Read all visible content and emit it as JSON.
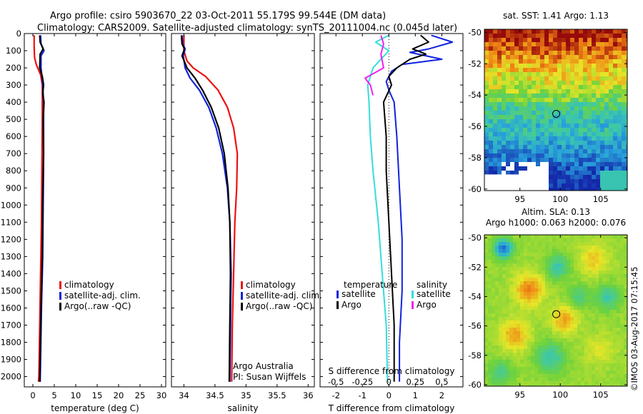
{
  "header": {
    "title_line1": "Argo profile: csiro 5903670_22 03-Oct-2011 55.179S 99.544E (DM data)",
    "title_line2": "Climatology: CARS2009. Satellite-adjusted climatology: synTS_20111004.nc (0.045d later)"
  },
  "footer": {
    "watermark": "©IMOS 03-Aug-2017 07:15:45",
    "credit_line1": "Argo Australia",
    "credit_line2": "PI: Susan Wijffels"
  },
  "colors": {
    "climatology": "#ee1111",
    "satellite": "#1122dd",
    "argo": "#000000",
    "salinity_satellite": "#33dddd",
    "salinity_argo": "#ee22ee"
  },
  "chart_data": [
    {
      "id": "temperature",
      "type": "line",
      "xlabel": "temperature (deg C)",
      "ylabel": "",
      "xlim": [
        -2,
        31
      ],
      "ylim": [
        2060,
        0
      ],
      "xticks": [
        0,
        5,
        10,
        15,
        20,
        25,
        30
      ],
      "yticks": [
        0,
        100,
        200,
        300,
        400,
        500,
        600,
        700,
        800,
        900,
        1000,
        1100,
        1200,
        1300,
        1400,
        1500,
        1600,
        1700,
        1800,
        1900,
        2000
      ],
      "legend": [
        "climatology",
        "satellite-adj. clim.",
        "Argo(..raw -QC)"
      ],
      "series": [
        {
          "name": "climatology",
          "color": "climatology",
          "points": [
            [
              0.3,
              10
            ],
            [
              0.3,
              80
            ],
            [
              0.4,
              140
            ],
            [
              0.8,
              180
            ],
            [
              1.8,
              240
            ],
            [
              2.2,
              300
            ],
            [
              2.2,
              500
            ],
            [
              2.1,
              800
            ],
            [
              2.0,
              1100
            ],
            [
              1.8,
              1400
            ],
            [
              1.6,
              1700
            ],
            [
              1.4,
              2000
            ],
            [
              1.3,
              2030
            ]
          ]
        },
        {
          "name": "satellite-adj. clim.",
          "color": "satellite",
          "points": [
            [
              1.8,
              10
            ],
            [
              1.9,
              60
            ],
            [
              2.6,
              100
            ],
            [
              1.9,
              130
            ],
            [
              1.9,
              200
            ],
            [
              2.3,
              300
            ],
            [
              2.5,
              400
            ],
            [
              2.5,
              700
            ],
            [
              2.4,
              1000
            ],
            [
              2.3,
              1300
            ],
            [
              2.0,
              1600
            ],
            [
              1.8,
              1900
            ],
            [
              1.7,
              2030
            ]
          ]
        },
        {
          "name": "Argo(..raw -QC)",
          "color": "argo",
          "points": [
            [
              1.6,
              10
            ],
            [
              1.7,
              50
            ],
            [
              2.4,
              90
            ],
            [
              1.7,
              120
            ],
            [
              1.6,
              200
            ],
            [
              2.2,
              250
            ],
            [
              2.5,
              300
            ],
            [
              2.3,
              350
            ],
            [
              2.6,
              400
            ],
            [
              2.4,
              500
            ],
            [
              2.5,
              700
            ],
            [
              2.3,
              1000
            ],
            [
              2.2,
              1300
            ],
            [
              1.9,
              1600
            ],
            [
              1.7,
              1900
            ],
            [
              1.6,
              2030
            ]
          ]
        }
      ]
    },
    {
      "id": "salinity",
      "type": "line",
      "xlabel": "salinity",
      "ylabel": "",
      "xlim": [
        33.8,
        36.1
      ],
      "ylim": [
        2060,
        0
      ],
      "xticks": [
        34,
        34.5,
        35,
        35.5,
        36
      ],
      "xtick_labels": [
        "34",
        "34.5",
        "35",
        "35.5",
        "36"
      ],
      "legend": [
        "climatology",
        "satellite-adj. clim.",
        "Argo(..raw -QC)"
      ],
      "series": [
        {
          "name": "climatology",
          "color": "climatology",
          "points": [
            [
              34.0,
              10
            ],
            [
              34.0,
              100
            ],
            [
              34.05,
              160
            ],
            [
              34.15,
              200
            ],
            [
              34.35,
              250
            ],
            [
              34.55,
              330
            ],
            [
              34.7,
              430
            ],
            [
              34.8,
              550
            ],
            [
              34.86,
              700
            ],
            [
              34.85,
              900
            ],
            [
              34.82,
              1100
            ],
            [
              34.8,
              1400
            ],
            [
              34.78,
              1700
            ],
            [
              34.77,
              2030
            ]
          ]
        },
        {
          "name": "satellite-adj. clim.",
          "color": "satellite",
          "points": [
            [
              33.97,
              10
            ],
            [
              33.98,
              60
            ],
            [
              34.02,
              90
            ],
            [
              33.99,
              130
            ],
            [
              34.02,
              200
            ],
            [
              34.1,
              260
            ],
            [
              34.25,
              330
            ],
            [
              34.4,
              430
            ],
            [
              34.52,
              550
            ],
            [
              34.62,
              700
            ],
            [
              34.7,
              900
            ],
            [
              34.74,
              1100
            ],
            [
              34.76,
              1400
            ],
            [
              34.75,
              1700
            ],
            [
              34.74,
              2030
            ]
          ]
        },
        {
          "name": "Argo(..raw -QC)",
          "color": "argo",
          "points": [
            [
              33.96,
              10
            ],
            [
              33.97,
              60
            ],
            [
              34.01,
              90
            ],
            [
              33.97,
              130
            ],
            [
              34.05,
              200
            ],
            [
              34.18,
              260
            ],
            [
              34.3,
              330
            ],
            [
              34.44,
              430
            ],
            [
              34.56,
              550
            ],
            [
              34.65,
              700
            ],
            [
              34.71,
              900
            ],
            [
              34.74,
              1100
            ],
            [
              34.75,
              1400
            ],
            [
              34.74,
              1700
            ],
            [
              34.73,
              2030
            ]
          ]
        }
      ]
    },
    {
      "id": "difference",
      "type": "line",
      "xlabel": "T difference from climatology",
      "xlabel_top": "S difference from climatology",
      "ylabel": "",
      "xlim": [
        -2.6,
        2.8
      ],
      "ylim": [
        2060,
        0
      ],
      "xticks": [
        -2,
        -1,
        0,
        1,
        2
      ],
      "xticks_top": [
        -0.5,
        -0.25,
        0,
        0.25,
        0.5
      ],
      "xticks_top_labels": [
        "-0.5",
        "-0.25",
        "0",
        "0.25",
        "0.5"
      ],
      "legend_temperature_title": "temperature",
      "legend_salinity_title": "salinity",
      "legend_temperature": [
        "satellite",
        "Argo"
      ],
      "legend_salinity": [
        "satellite",
        "Argo"
      ],
      "series": [
        {
          "name": "satellite",
          "group": "temperature",
          "color": "satellite",
          "points": [
            [
              1.6,
              10
            ],
            [
              2.4,
              50
            ],
            [
              1.5,
              90
            ],
            [
              0.8,
              110
            ],
            [
              2.0,
              150
            ],
            [
              0.5,
              180
            ],
            [
              0.1,
              220
            ],
            [
              -0.1,
              280
            ],
            [
              0.0,
              330
            ],
            [
              0.2,
              400
            ],
            [
              0.3,
              600
            ],
            [
              0.4,
              900
            ],
            [
              0.5,
              1200
            ],
            [
              0.5,
              1500
            ],
            [
              0.4,
              1800
            ],
            [
              0.4,
              2030
            ]
          ]
        },
        {
          "name": "Argo",
          "group": "temperature",
          "color": "argo",
          "points": [
            [
              1.2,
              10
            ],
            [
              1.5,
              50
            ],
            [
              0.9,
              90
            ],
            [
              1.4,
              120
            ],
            [
              0.8,
              150
            ],
            [
              0.6,
              170
            ],
            [
              0.3,
              200
            ],
            [
              0.0,
              250
            ],
            [
              0.1,
              300
            ],
            [
              -0.2,
              400
            ],
            [
              -0.1,
              600
            ],
            [
              -0.1,
              800
            ],
            [
              0.0,
              1100
            ],
            [
              0.1,
              1400
            ],
            [
              0.2,
              1700
            ],
            [
              0.2,
              2030
            ]
          ]
        },
        {
          "name": "satellite",
          "group": "salinity",
          "color": "salinity_satellite",
          "points": [
            [
              0.0,
              10
            ],
            [
              -0.5,
              50
            ],
            [
              0.0,
              100
            ],
            [
              -0.6,
              200
            ],
            [
              -0.8,
              300
            ],
            [
              -0.75,
              400
            ],
            [
              -0.7,
              600
            ],
            [
              -0.6,
              800
            ],
            [
              -0.4,
              1100
            ],
            [
              -0.25,
              1400
            ],
            [
              -0.1,
              1700
            ],
            [
              -0.05,
              2030
            ]
          ]
        },
        {
          "name": "Argo",
          "group": "salinity",
          "color": "salinity_argo",
          "points": [
            [
              -0.3,
              10
            ],
            [
              -0.2,
              60
            ],
            [
              -0.3,
              120
            ],
            [
              -0.2,
              200
            ],
            [
              -0.9,
              260
            ],
            [
              -0.7,
              300
            ],
            [
              -0.6,
              360
            ]
          ]
        }
      ]
    },
    {
      "id": "sst_map",
      "type": "heatmap",
      "title": "sat. SST: 1.41  Argo: 1.13",
      "xlim": [
        90.6,
        108.3
      ],
      "ylim": [
        -60.1,
        -49.8
      ],
      "xticks": [
        95,
        100,
        105
      ],
      "yticks": [
        -50,
        -52,
        -54,
        -56,
        -58,
        -60
      ],
      "marker": {
        "lon": 99.5,
        "lat": -55.2
      }
    },
    {
      "id": "sla_map",
      "type": "heatmap",
      "title_line1": "Altim. SLA: 0.13",
      "title_line2": "Argo h1000: 0.063 h2000: 0.076",
      "xlim": [
        90.6,
        108.3
      ],
      "ylim": [
        -60.1,
        -49.8
      ],
      "xticks": [
        95,
        100,
        105
      ],
      "yticks": [
        -50,
        -52,
        -54,
        -56,
        -58,
        -60
      ],
      "marker": {
        "lon": 99.5,
        "lat": -55.2
      }
    }
  ]
}
